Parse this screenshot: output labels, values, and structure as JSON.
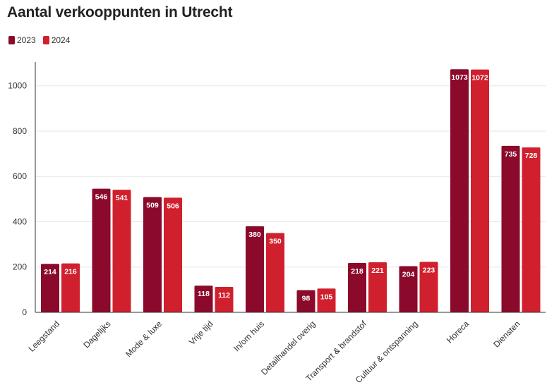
{
  "chart_data": {
    "type": "bar",
    "title": "Aantal verkooppunten in Utrecht",
    "xlabel": "",
    "ylabel": "",
    "ylim": [
      0,
      1100
    ],
    "yticks": [
      0,
      200,
      400,
      600,
      800,
      1000
    ],
    "grid": true,
    "legend_position": "top-left",
    "categories": [
      "Leegstand",
      "Dagelijks",
      "Mode & luxe",
      "Vrije tijd",
      "In/om huis",
      "Detailhandel overig",
      "Transport & brandstof",
      "Cultuur & ontspanning",
      "Horeca",
      "Diensten"
    ],
    "series": [
      {
        "name": "2023",
        "color": "#8b0a2b",
        "values": [
          214,
          546,
          509,
          118,
          380,
          98,
          218,
          204,
          1073,
          735
        ]
      },
      {
        "name": "2024",
        "color": "#d0202e",
        "values": [
          216,
          541,
          506,
          112,
          350,
          105,
          221,
          223,
          1072,
          728
        ]
      }
    ]
  }
}
